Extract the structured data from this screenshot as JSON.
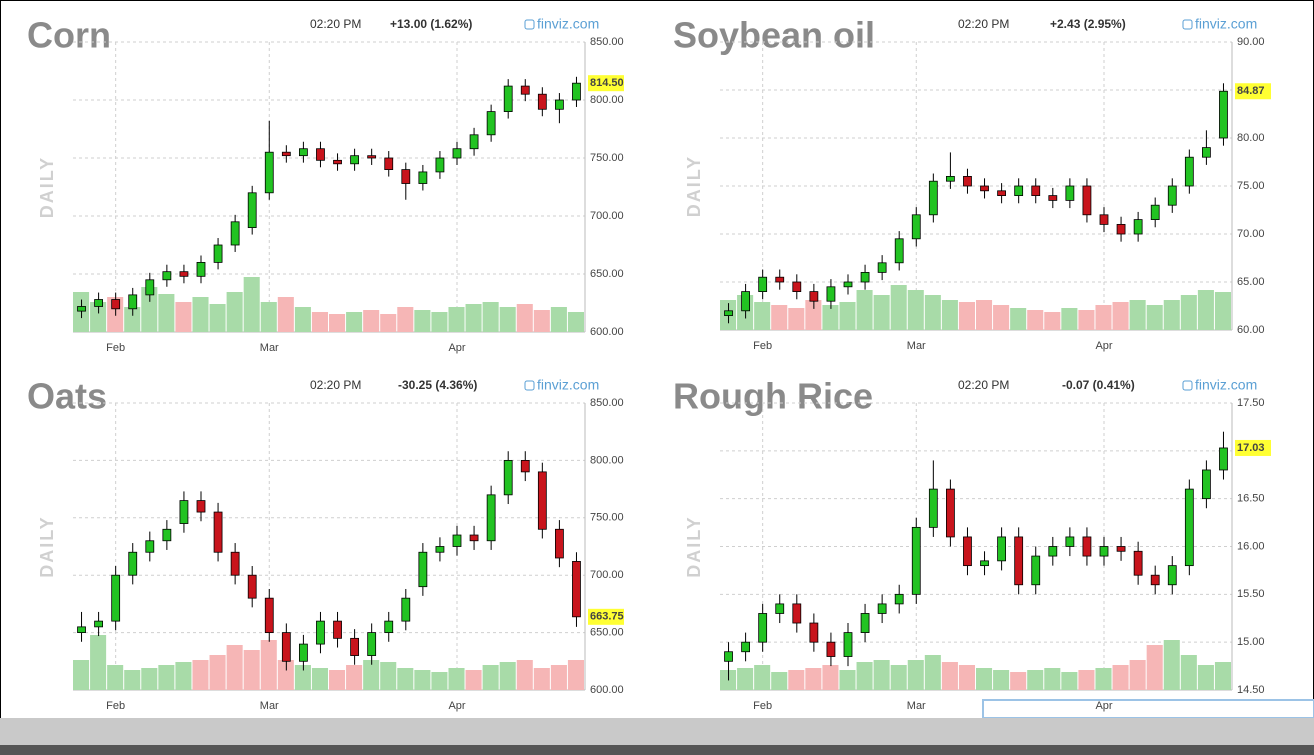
{
  "chart_data": [
    {
      "type": "candlestick",
      "title": "Corn",
      "ylabel": "DAILY",
      "time": "02:20 PM",
      "change": "+13.00 (1.62%)",
      "change_color": "#1a9b1a",
      "brand": "finviz.com",
      "x": [
        0,
        1,
        2,
        3,
        4,
        5,
        6,
        7,
        8,
        9,
        10,
        11,
        12,
        13,
        14,
        15,
        16,
        17,
        18,
        19,
        20,
        21,
        22,
        23,
        24,
        25,
        26,
        27,
        28,
        29
      ],
      "open": [
        618,
        622,
        628,
        620,
        632,
        645,
        652,
        648,
        660,
        675,
        690,
        720,
        755,
        752,
        758,
        748,
        745,
        752,
        750,
        740,
        728,
        738,
        750,
        758,
        770,
        790,
        812,
        805,
        792,
        800
      ],
      "high": [
        628,
        634,
        634,
        638,
        651,
        658,
        658,
        666,
        681,
        701,
        726,
        782,
        761,
        764,
        764,
        754,
        758,
        758,
        756,
        746,
        744,
        756,
        764,
        776,
        796,
        818,
        818,
        811,
        806,
        820
      ],
      "low": [
        612,
        616,
        614,
        614,
        626,
        639,
        642,
        642,
        654,
        669,
        684,
        714,
        746,
        746,
        742,
        739,
        739,
        744,
        734,
        714,
        722,
        732,
        744,
        752,
        764,
        784,
        799,
        786,
        780,
        794
      ],
      "close": [
        622,
        628,
        620,
        632,
        645,
        652,
        648,
        660,
        675,
        695,
        720,
        755,
        752,
        758,
        748,
        745,
        752,
        750,
        740,
        728,
        738,
        750,
        758,
        770,
        790,
        812,
        805,
        792,
        800,
        814.5
      ],
      "volume": [
        40,
        30,
        35,
        25,
        45,
        38,
        30,
        35,
        28,
        40,
        55,
        30,
        35,
        25,
        20,
        18,
        20,
        22,
        18,
        25,
        22,
        20,
        25,
        28,
        30,
        25,
        28,
        22,
        25,
        20
      ],
      "last_label": "814.50",
      "up_color": "#22c322",
      "down_color": "#c8141c",
      "xlim": [
        -0.5,
        29.5
      ],
      "xticks": [
        {
          "value": 2,
          "label": "Feb"
        },
        {
          "value": 11,
          "label": "Mar"
        },
        {
          "value": 22,
          "label": "Apr"
        }
      ],
      "ylim": [
        600,
        850
      ],
      "yticks": [
        {
          "value": 850,
          "label": "850.00"
        },
        {
          "value": 800,
          "label": "800.00"
        },
        {
          "value": 750,
          "label": "750.00"
        },
        {
          "value": 700,
          "label": "700.00"
        },
        {
          "value": 650,
          "label": "650.00"
        },
        {
          "value": 600,
          "label": "600.00"
        }
      ],
      "grid": true
    },
    {
      "type": "candlestick",
      "title": "Soybean oil",
      "ylabel": "DAILY",
      "time": "02:20 PM",
      "change": "+2.43 (2.95%)",
      "change_color": "#1a9b1a",
      "brand": "finviz.com",
      "x": [
        0,
        1,
        2,
        3,
        4,
        5,
        6,
        7,
        8,
        9,
        10,
        11,
        12,
        13,
        14,
        15,
        16,
        17,
        18,
        19,
        20,
        21,
        22,
        23,
        24,
        25,
        26,
        27,
        28,
        29
      ],
      "open": [
        61.5,
        62,
        64,
        65.5,
        65,
        64,
        63,
        64.5,
        65,
        66,
        67,
        69.5,
        72,
        75.5,
        76,
        75,
        74.5,
        74,
        75,
        74,
        73.5,
        75,
        72,
        71,
        70,
        71.5,
        73,
        75,
        78,
        80
      ],
      "high": [
        62.8,
        64.8,
        66.3,
        66.3,
        65.8,
        64.8,
        65.3,
        65.8,
        66.8,
        67.8,
        70.3,
        72.8,
        76.3,
        78.5,
        76.8,
        75.8,
        75.3,
        75.8,
        75.8,
        74.8,
        75.8,
        75.8,
        72.8,
        71.8,
        72.3,
        73.8,
        75.8,
        78.8,
        80.8,
        85.7
      ],
      "low": [
        60.7,
        61.2,
        63.2,
        64.2,
        63.2,
        62.2,
        62.2,
        63.7,
        64.2,
        65.2,
        66.2,
        68.7,
        71.2,
        74.7,
        74.2,
        73.7,
        73.2,
        73.2,
        73.2,
        72.7,
        72.7,
        71.2,
        70.2,
        69.2,
        69.2,
        70.7,
        72.2,
        74.2,
        77.2,
        79.2
      ],
      "close": [
        62,
        64,
        65.5,
        65,
        64,
        63,
        64.5,
        65,
        66,
        67,
        69.5,
        72,
        75.5,
        76,
        75,
        74.5,
        74,
        75,
        74,
        73.5,
        75,
        72,
        71,
        70,
        71.5,
        73,
        75,
        78,
        79,
        84.87
      ],
      "volume": [
        30,
        35,
        28,
        25,
        22,
        30,
        25,
        28,
        40,
        35,
        45,
        40,
        35,
        30,
        28,
        30,
        25,
        22,
        20,
        18,
        22,
        20,
        25,
        28,
        30,
        25,
        30,
        35,
        40,
        38
      ],
      "last_label": "84.87",
      "up_color": "#22c322",
      "down_color": "#c8141c",
      "xlim": [
        -0.5,
        29.5
      ],
      "xticks": [
        {
          "value": 2,
          "label": "Feb"
        },
        {
          "value": 11,
          "label": "Mar"
        },
        {
          "value": 22,
          "label": "Apr"
        }
      ],
      "ylim": [
        60,
        90
      ],
      "yticks": [
        {
          "value": 90,
          "label": "90.00"
        },
        {
          "value": 85,
          "label": "85.00"
        },
        {
          "value": 80,
          "label": "80.00"
        },
        {
          "value": 75,
          "label": "75.00"
        },
        {
          "value": 70,
          "label": "70.00"
        },
        {
          "value": 65,
          "label": "65.00"
        },
        {
          "value": 60,
          "label": "60.00"
        }
      ],
      "grid": true
    },
    {
      "type": "candlestick",
      "title": "Oats",
      "ylabel": "DAILY",
      "time": "02:20 PM",
      "change": "-30.25 (4.36%)",
      "change_color": "#d41f1f",
      "brand": "finviz.com",
      "x": [
        0,
        1,
        2,
        3,
        4,
        5,
        6,
        7,
        8,
        9,
        10,
        11,
        12,
        13,
        14,
        15,
        16,
        17,
        18,
        19,
        20,
        21,
        22,
        23,
        24,
        25,
        26,
        27,
        28,
        29
      ],
      "open": [
        650,
        655,
        660,
        700,
        720,
        730,
        745,
        765,
        755,
        720,
        700,
        680,
        650,
        625,
        640,
        660,
        645,
        630,
        650,
        660,
        690,
        720,
        725,
        735,
        730,
        770,
        800,
        790,
        740,
        712
      ],
      "high": [
        668,
        668,
        708,
        728,
        738,
        748,
        773,
        773,
        763,
        728,
        708,
        688,
        658,
        648,
        668,
        668,
        653,
        658,
        668,
        688,
        728,
        733,
        743,
        743,
        778,
        808,
        808,
        798,
        748,
        720
      ],
      "low": [
        642,
        647,
        652,
        692,
        712,
        722,
        737,
        747,
        712,
        692,
        672,
        642,
        617,
        617,
        632,
        637,
        622,
        622,
        642,
        652,
        682,
        712,
        717,
        722,
        722,
        762,
        782,
        732,
        707,
        655
      ],
      "close": [
        655,
        660,
        700,
        720,
        730,
        740,
        765,
        755,
        720,
        700,
        680,
        650,
        625,
        640,
        660,
        645,
        630,
        650,
        660,
        680,
        720,
        725,
        735,
        730,
        770,
        800,
        790,
        740,
        715,
        663.75
      ],
      "volume": [
        30,
        55,
        25,
        20,
        22,
        25,
        28,
        30,
        35,
        45,
        40,
        50,
        30,
        25,
        22,
        20,
        25,
        30,
        28,
        22,
        20,
        18,
        22,
        20,
        25,
        28,
        30,
        22,
        25,
        30
      ],
      "last_label": "663.75",
      "up_color": "#22c322",
      "down_color": "#c8141c",
      "xlim": [
        -0.5,
        29.5
      ],
      "xticks": [
        {
          "value": 2,
          "label": "Feb"
        },
        {
          "value": 11,
          "label": "Mar"
        },
        {
          "value": 22,
          "label": "Apr"
        }
      ],
      "ylim": [
        600,
        850
      ],
      "yticks": [
        {
          "value": 850,
          "label": "850.00"
        },
        {
          "value": 800,
          "label": "800.00"
        },
        {
          "value": 750,
          "label": "750.00"
        },
        {
          "value": 700,
          "label": "700.00"
        },
        {
          "value": 650,
          "label": "650.00"
        },
        {
          "value": 600,
          "label": "600.00"
        }
      ],
      "grid": true
    },
    {
      "type": "candlestick",
      "title": "Rough Rice",
      "ylabel": "DAILY",
      "time": "02:20 PM",
      "change": "-0.07 (0.41%)",
      "change_color": "#d41f1f",
      "brand": "finviz.com",
      "x": [
        0,
        1,
        2,
        3,
        4,
        5,
        6,
        7,
        8,
        9,
        10,
        11,
        12,
        13,
        14,
        15,
        16,
        17,
        18,
        19,
        20,
        21,
        22,
        23,
        24,
        25,
        26,
        27,
        28,
        29
      ],
      "open": [
        14.8,
        14.9,
        15.0,
        15.3,
        15.4,
        15.2,
        15.0,
        14.85,
        15.1,
        15.3,
        15.4,
        15.5,
        16.2,
        16.6,
        16.1,
        15.8,
        15.85,
        16.1,
        15.6,
        15.9,
        16.0,
        16.1,
        15.9,
        16.0,
        15.95,
        15.7,
        15.6,
        15.8,
        16.5,
        16.8
      ],
      "high": [
        15.0,
        15.1,
        15.4,
        15.5,
        15.5,
        15.3,
        15.1,
        15.2,
        15.4,
        15.5,
        15.6,
        16.3,
        16.9,
        16.7,
        16.2,
        15.95,
        16.2,
        16.2,
        16.0,
        16.1,
        16.2,
        16.2,
        16.1,
        16.1,
        16.05,
        15.8,
        15.9,
        16.7,
        16.9,
        17.2
      ],
      "low": [
        14.6,
        14.8,
        14.9,
        15.2,
        15.1,
        14.9,
        14.75,
        14.75,
        15.0,
        15.2,
        15.3,
        15.4,
        16.1,
        16.0,
        15.7,
        15.7,
        15.75,
        15.5,
        15.5,
        15.8,
        15.9,
        15.8,
        15.8,
        15.85,
        15.6,
        15.5,
        15.5,
        15.7,
        16.4,
        16.7
      ],
      "close": [
        14.9,
        15.0,
        15.3,
        15.4,
        15.2,
        15.0,
        14.85,
        15.1,
        15.3,
        15.4,
        15.5,
        16.2,
        16.6,
        16.1,
        15.8,
        15.85,
        16.1,
        15.6,
        15.9,
        16.0,
        16.1,
        15.9,
        16.0,
        15.95,
        15.7,
        15.6,
        15.8,
        16.6,
        16.8,
        17.03
      ],
      "volume": [
        20,
        22,
        25,
        18,
        20,
        22,
        25,
        20,
        28,
        30,
        25,
        30,
        35,
        28,
        25,
        22,
        20,
        18,
        20,
        22,
        18,
        20,
        22,
        25,
        30,
        45,
        50,
        35,
        25,
        28
      ],
      "last_label": "17.03",
      "up_color": "#22c322",
      "down_color": "#c8141c",
      "xlim": [
        -0.5,
        29.5
      ],
      "xticks": [
        {
          "value": 2,
          "label": "Feb"
        },
        {
          "value": 11,
          "label": "Mar"
        },
        {
          "value": 22,
          "label": "Apr"
        }
      ],
      "ylim": [
        14.5,
        17.5
      ],
      "yticks": [
        {
          "value": 17.5,
          "label": "17.50"
        },
        {
          "value": 17,
          "label": "17.00"
        },
        {
          "value": 16.5,
          "label": "16.50"
        },
        {
          "value": 16,
          "label": "16.00"
        },
        {
          "value": 15.5,
          "label": "15.50"
        },
        {
          "value": 15,
          "label": "15.00"
        },
        {
          "value": 14.5,
          "label": "14.50"
        }
      ],
      "grid": true
    }
  ]
}
